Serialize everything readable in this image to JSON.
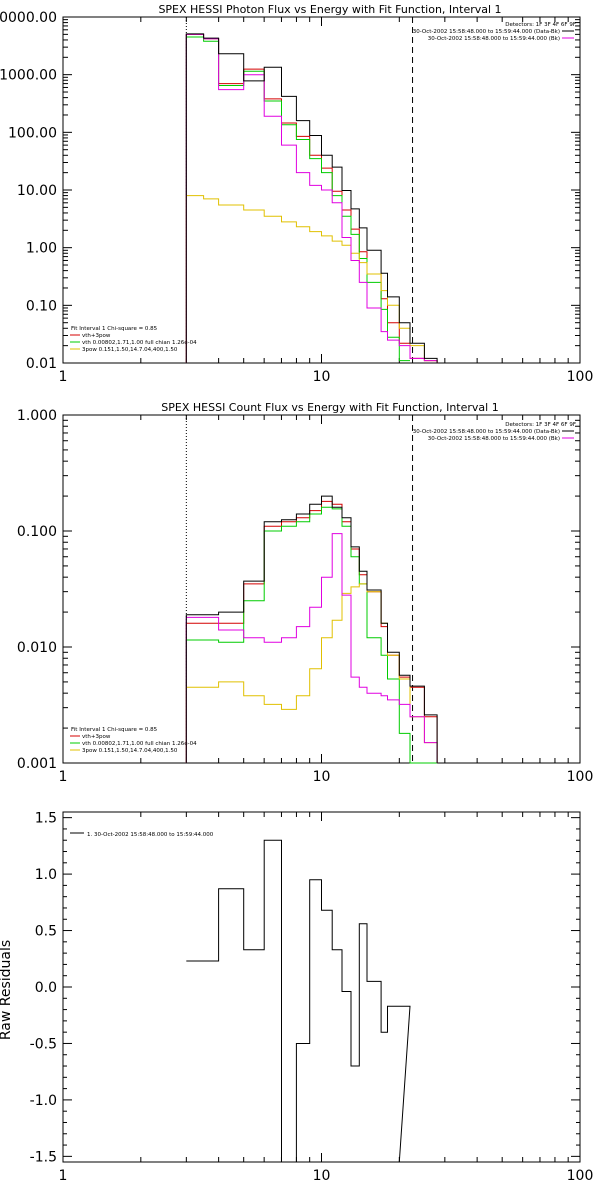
{
  "chart_data": [
    {
      "type": "line",
      "title": "SPEX HESSI Photon Flux vs Energy with Fit Function, Interval 1",
      "xscale": "log",
      "yscale": "log",
      "xlim": [
        1,
        100
      ],
      "ylim": [
        0.01,
        10000
      ],
      "x_ticks": [
        {
          "v": 1,
          "label": "1"
        },
        {
          "v": 10,
          "label": "10"
        },
        {
          "v": 100,
          "label": "100"
        }
      ],
      "y_ticks": [
        {
          "v": 0.01,
          "label": "0.01"
        },
        {
          "v": 0.1,
          "label": "0.10"
        },
        {
          "v": 1,
          "label": "1.00"
        },
        {
          "v": 10,
          "label": "10.00"
        },
        {
          "v": 100,
          "label": "100.00"
        },
        {
          "v": 1000,
          "label": "1000.00"
        },
        {
          "v": 10000,
          "label": "10000.00"
        }
      ],
      "info_lines": [
        "Detectors: 1F 3F 4F 6F 9F",
        "30-Oct-2002 15:58:48.000 to 15:59:44.000 (Data-Bk)",
        "30-Oct-2002 15:58:48.000 to 15:59:44.000 (Bk)"
      ],
      "fit_text": "Fit Interval 1    Chi-square = 0.85",
      "vlines": [
        {
          "x": 3,
          "style": "dotted"
        },
        {
          "x": 22.5,
          "style": "dashed"
        }
      ],
      "edges": [
        3,
        3.5,
        4,
        5,
        6,
        7,
        8,
        9,
        10,
        11,
        12,
        13,
        14,
        15,
        17,
        18,
        20,
        22,
        25,
        28
      ],
      "series": [
        {
          "name": "vth+3pow",
          "color": "#d40000",
          "values": [
            5000,
            4200,
            700,
            1250,
            380,
            145,
            85,
            40,
            24,
            9.5,
            4.5,
            2.1,
            0.85,
            0.35,
            0.13,
            0.05,
            0.022,
            0.012,
            0.011
          ]
        },
        {
          "name": "vth 0.00802,1.71,1.00  full chian 1.26e-04",
          "color": "#00cc00",
          "values": [
            4500,
            3800,
            650,
            1150,
            350,
            135,
            75,
            35,
            20,
            8.0,
            3.5,
            1.7,
            0.65,
            0.25,
            0.085,
            0.028,
            0.011,
            null,
            null
          ]
        },
        {
          "name": "3pow 0.151,1.50,14.7.04,400,1.50",
          "color": "#e0c000",
          "values": [
            8,
            7,
            5.5,
            4.5,
            3.5,
            2.8,
            2.3,
            1.9,
            1.6,
            1.3,
            1.1,
            0.8,
            0.55,
            0.35,
            0.18,
            0.1,
            0.04,
            0.02,
            0.011
          ]
        },
        {
          "name": "",
          "color": "#e000e0",
          "values": [
            5000,
            4200,
            550,
            1000,
            190,
            60,
            20,
            12,
            10,
            6,
            1.5,
            0.6,
            0.25,
            0.09,
            0.035,
            0.025,
            0.02,
            0.012,
            0.011
          ]
        },
        {
          "name": "",
          "color": "#000000",
          "values": [
            5100,
            4300,
            2300,
            780,
            1350,
            420,
            160,
            88,
            40,
            25,
            9.8,
            4.7,
            2.2,
            0.9,
            0.36,
            0.14,
            0.05,
            0.022,
            0.012
          ]
        }
      ]
    },
    {
      "type": "line",
      "title": "SPEX HESSI Count Flux vs Energy with Fit Function, Interval 1",
      "xscale": "log",
      "yscale": "log",
      "xlim": [
        1,
        100
      ],
      "ylim": [
        0.001,
        1
      ],
      "x_ticks": [
        {
          "v": 1,
          "label": "1"
        },
        {
          "v": 10,
          "label": "10"
        },
        {
          "v": 100,
          "label": "100"
        }
      ],
      "y_ticks": [
        {
          "v": 0.001,
          "label": "0.001"
        },
        {
          "v": 0.01,
          "label": "0.010"
        },
        {
          "v": 0.1,
          "label": "0.100"
        },
        {
          "v": 1,
          "label": "1.000"
        }
      ],
      "info_lines": [
        "Detectors: 1F 3F 4F 6F 9F",
        "30-Oct-2002 15:58:48.000 to 15:59:44.000 (Data-Bk)",
        "30-Oct-2002 15:58:48.000 to 15:59:44.000 (Bk)"
      ],
      "fit_text": "Fit Interval 1    Chi-square = 0.85",
      "vlines": [
        {
          "x": 3,
          "style": "dotted"
        },
        {
          "x": 22.5,
          "style": "dashed"
        }
      ],
      "edges": [
        3,
        3.5,
        4,
        5,
        6,
        7,
        8,
        9,
        10,
        11,
        12,
        13,
        14,
        15,
        17,
        18,
        20,
        22,
        25,
        28
      ],
      "series": [
        {
          "name": "vth+3pow",
          "color": "#d40000",
          "values": [
            0.016,
            0.016,
            0.016,
            0.035,
            0.11,
            0.12,
            0.13,
            0.15,
            0.18,
            0.17,
            0.12,
            0.07,
            0.042,
            0.03,
            0.015,
            0.0085,
            0.0055,
            0.0045,
            0.0025
          ]
        },
        {
          "name": "vth 0.00802,1.71,1.00  full chian 1.26e-04",
          "color": "#00cc00",
          "values": [
            0.0115,
            0.0115,
            0.011,
            0.025,
            0.1,
            0.11,
            0.12,
            0.14,
            0.16,
            0.155,
            0.11,
            0.06,
            0.035,
            0.012,
            0.0085,
            0.0053,
            0.0018,
            0.001,
            0.001
          ]
        },
        {
          "name": "3pow 0.151,1.50,14.7.04,400,1.50",
          "color": "#e0c000",
          "values": [
            0.0045,
            0.0045,
            0.005,
            0.0038,
            0.0032,
            0.0029,
            0.0038,
            0.0065,
            0.012,
            0.017,
            0.029,
            0.033,
            0.035,
            0.03,
            0.016,
            0.0085,
            0.0053,
            0.0025,
            0.0015
          ]
        },
        {
          "name": "",
          "color": "#e000e0",
          "values": [
            0.018,
            0.018,
            0.014,
            0.012,
            0.011,
            0.012,
            0.015,
            0.022,
            0.04,
            0.095,
            0.028,
            0.0055,
            0.0045,
            0.004,
            0.0038,
            0.0035,
            0.0032,
            0.0025,
            0.0015
          ]
        },
        {
          "name": "",
          "color": "#000000",
          "values": [
            0.019,
            0.019,
            0.02,
            0.037,
            0.12,
            0.125,
            0.14,
            0.17,
            0.2,
            0.16,
            0.13,
            0.073,
            0.045,
            0.031,
            0.016,
            0.009,
            0.0057,
            0.0046,
            0.0026
          ]
        }
      ]
    },
    {
      "type": "line",
      "title": "",
      "ylabel": "Raw Residuals",
      "xscale": "log",
      "yscale": "linear",
      "xlim": [
        1,
        100
      ],
      "ylim": [
        -1.55,
        1.55
      ],
      "x_ticks": [
        {
          "v": 1,
          "label": "1"
        },
        {
          "v": 10,
          "label": "10"
        },
        {
          "v": 100,
          "label": "100"
        }
      ],
      "y_ticks": [
        {
          "v": 1.5,
          "label": "1.5"
        },
        {
          "v": 1.0,
          "label": "1.0"
        },
        {
          "v": 0.5,
          "label": "0.5"
        },
        {
          "v": 0.0,
          "label": "0.0"
        },
        {
          "v": -0.5,
          "label": "-0.5"
        },
        {
          "v": -1.0,
          "label": "-1.0"
        },
        {
          "v": -1.5,
          "label": "-1.5"
        }
      ],
      "legend_entry": "1. 30-Oct-2002 15:58:48.000 to 15:59:44.000",
      "edges": [
        3,
        3.5,
        4,
        5,
        6,
        7,
        8,
        9,
        10,
        11,
        12,
        13,
        14,
        15,
        17,
        18,
        20,
        22
      ],
      "series": [
        {
          "name": "1. 30-Oct-2002 15:58:48.000 to 15:59:44.000",
          "color": "#000000",
          "values": [
            0.23,
            0.23,
            0.87,
            0.33,
            1.3,
            -1.55,
            -0.5,
            0.95,
            0.68,
            0.33,
            -0.04,
            -0.7,
            0.56,
            0.05,
            -0.4,
            -0.17,
            -0.17
          ]
        }
      ]
    }
  ]
}
